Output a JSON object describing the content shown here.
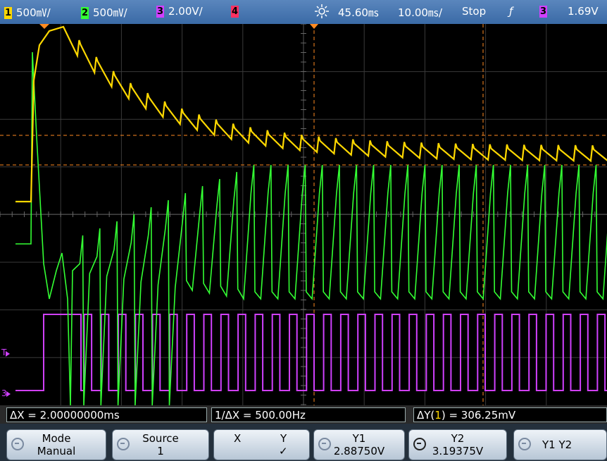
{
  "topbar": {
    "ch1": {
      "num": "1",
      "scale": "500㎷/",
      "color": "#ffd800"
    },
    "ch2": {
      "num": "2",
      "scale": "500㎷/",
      "color": "#33ff33"
    },
    "ch3": {
      "num": "3",
      "scale": "2.00V/",
      "color": "#d040ff"
    },
    "ch4": {
      "num": "4",
      "color": "#ff3060"
    },
    "time_delay": "45.60㎳",
    "time_scale": "10.00㎳/",
    "run_state": "Stop",
    "trigger_edge": "ƒ",
    "trigger_source": "3",
    "trigger_level": "1.69V"
  },
  "markers": {
    "trigger": "T",
    "ch3_ground": "3"
  },
  "readout": {
    "delta_x": "ΔX = 2.00000000ms",
    "inv_delta_x": "1/ΔX = 500.00Hz",
    "delta_y_prefix": "ΔY(",
    "delta_y_ch": "1",
    "delta_y_suffix": ") = 306.25mV"
  },
  "softkeys": {
    "mode": {
      "label": "Mode",
      "value": "Manual"
    },
    "source": {
      "label": "Source",
      "value": "1"
    },
    "x_label": "X",
    "y_label": "Y",
    "y_check": "✓",
    "y1": {
      "label": "Y1",
      "value": "2.88750V"
    },
    "y2": {
      "label": "Y2",
      "value": "3.19375V"
    },
    "y1y2": "Y1 Y2"
  }
}
